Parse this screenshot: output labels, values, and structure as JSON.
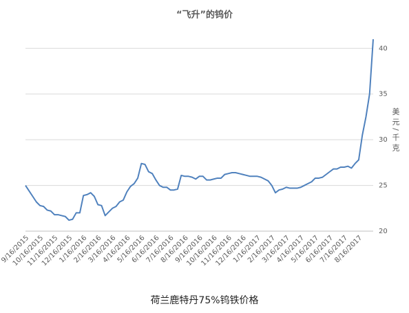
{
  "chart_data": {
    "type": "line",
    "title": "“飞升”的钨价",
    "caption": "荷兰鹿特丹75%钨铁价格",
    "y_label": "美元/千克",
    "categories": [
      "9/16/2015",
      null,
      null,
      null,
      "10/16/2015",
      null,
      null,
      null,
      "11/16/2015",
      null,
      null,
      null,
      "12/16/2015",
      null,
      null,
      null,
      "1/16/2016",
      null,
      null,
      null,
      "2/16/2016",
      null,
      null,
      null,
      "3/16/2016",
      null,
      null,
      null,
      "4/16/2016",
      null,
      null,
      null,
      "5/16/2016",
      null,
      null,
      null,
      "6/16/2016",
      null,
      null,
      null,
      "7/16/2016",
      null,
      null,
      null,
      "8/16/2016",
      null,
      null,
      null,
      "9/16/2016",
      null,
      null,
      null,
      "10/16/2016",
      null,
      null,
      null,
      "11/16/2016",
      null,
      null,
      null,
      "12/16/2016",
      null,
      null,
      null,
      "1/16/2017",
      null,
      null,
      null,
      "2/16/2017",
      null,
      null,
      null,
      "3/16/2017",
      null,
      null,
      null,
      "4/16/2017",
      null,
      null,
      null,
      "5/16/2017",
      null,
      null,
      null,
      "6/16/2017",
      null,
      null,
      null,
      "7/16/2017",
      null,
      null,
      null,
      "8/16/2017",
      null,
      null,
      null,
      null
    ],
    "series": [
      {
        "name": "荷兰鹿特丹75%钨铁价格",
        "color": "#4f81bd",
        "values": [
          25.0,
          24.4,
          23.8,
          23.2,
          22.8,
          22.7,
          22.3,
          22.2,
          21.8,
          21.8,
          21.7,
          21.6,
          21.2,
          21.3,
          22.0,
          22.0,
          23.9,
          24.0,
          24.2,
          23.8,
          22.9,
          22.8,
          21.7,
          22.1,
          22.5,
          22.7,
          23.2,
          23.4,
          24.3,
          24.9,
          25.2,
          25.8,
          27.4,
          27.3,
          26.5,
          26.3,
          25.6,
          25.0,
          24.8,
          24.8,
          24.5,
          24.5,
          24.6,
          26.1,
          26.0,
          26.0,
          25.9,
          25.7,
          26.0,
          26.0,
          25.6,
          25.6,
          25.7,
          25.8,
          25.8,
          26.2,
          26.3,
          26.4,
          26.4,
          26.3,
          26.2,
          26.1,
          26.0,
          26.0,
          26.0,
          25.9,
          25.7,
          25.5,
          25.0,
          24.2,
          24.5,
          24.6,
          24.8,
          24.7,
          24.7,
          24.7,
          24.8,
          25.0,
          25.2,
          25.4,
          25.8,
          25.8,
          25.9,
          26.2,
          26.5,
          26.8,
          26.8,
          27.0,
          27.0,
          27.1,
          26.9,
          27.4,
          27.8,
          30.5,
          32.5,
          35.0,
          41.0
        ]
      }
    ],
    "ylim": [
      20,
      41
    ],
    "yticks": [
      20,
      25,
      30,
      35,
      40
    ],
    "grid": true,
    "y_axis_side": "right"
  }
}
